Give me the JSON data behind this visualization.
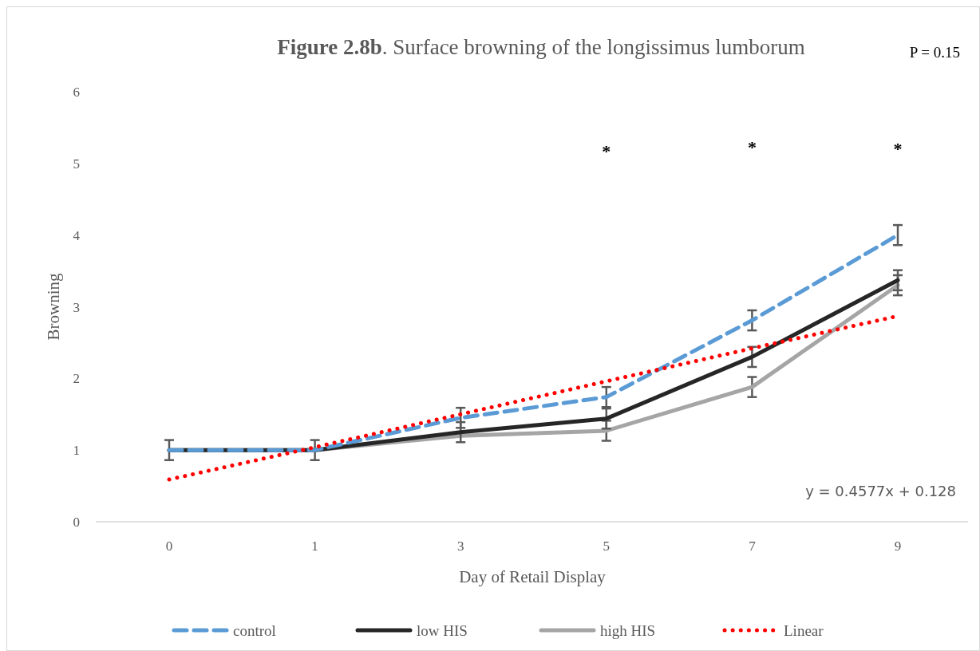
{
  "chart_data": {
    "type": "line",
    "title": "Figure 2.8b. Surface browning of the longissimus lumborum",
    "xlabel": "Day of Retail Display",
    "ylabel": "Browning",
    "categories": [
      "0",
      "1",
      "3",
      "5",
      "7",
      "9"
    ],
    "ylim": [
      0,
      6
    ],
    "yticks": [
      0,
      1,
      2,
      3,
      4,
      5,
      6
    ],
    "grid": false,
    "legend": "bottom",
    "series": [
      {
        "name": "control",
        "color": "#5b9bd5",
        "line_style": "dashed",
        "values": [
          1,
          1,
          1.45,
          1.74,
          2.81,
          4.0
        ],
        "errors": [
          0.14,
          0.14,
          0.14,
          0.14,
          0.14,
          0.14
        ]
      },
      {
        "name": "low HIS",
        "color": "#262626",
        "line_style": "solid",
        "values": [
          1,
          1,
          1.25,
          1.44,
          2.3,
          3.37
        ],
        "errors": [
          null,
          null,
          0.14,
          0.14,
          0.14,
          0.14
        ]
      },
      {
        "name": "high HIS",
        "color": "#a5a5a5",
        "line_style": "solid",
        "values": [
          1,
          1,
          1.2,
          1.27,
          1.88,
          3.3
        ],
        "errors": [
          null,
          null,
          null,
          0.14,
          0.14,
          0.14
        ]
      },
      {
        "name": "Linear",
        "color": "#ff0000",
        "line_style": "dotted",
        "values": [
          0.59,
          1.04,
          1.5,
          1.96,
          2.42,
          2.87
        ]
      }
    ],
    "annotations": [
      "*",
      "*",
      "*",
      "y = 0.4577x + 0.128",
      "P = 0.15"
    ]
  }
}
